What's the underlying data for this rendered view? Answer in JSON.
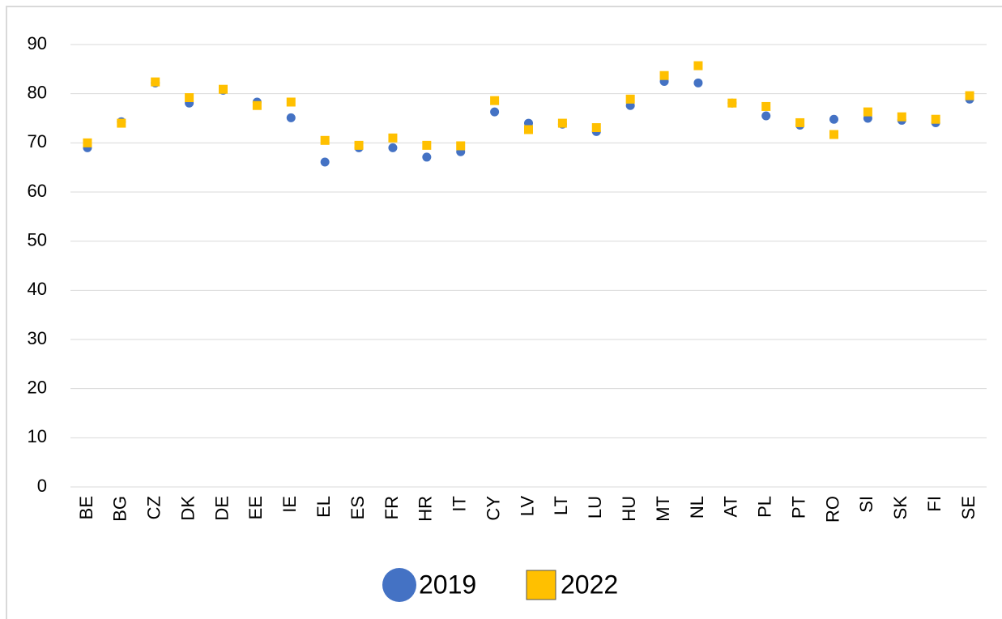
{
  "chart_data": {
    "type": "scatter",
    "categories": [
      "BE",
      "BG",
      "CZ",
      "DK",
      "DE",
      "EE",
      "IE",
      "EL",
      "ES",
      "FR",
      "HR",
      "IT",
      "CY",
      "LV",
      "LT",
      "LU",
      "HU",
      "MT",
      "NL",
      "AT",
      "PL",
      "PT",
      "RO",
      "SI",
      "SK",
      "FI",
      "SE"
    ],
    "series": [
      {
        "name": "2019",
        "color": "#4472c4",
        "marker": "circle",
        "values": [
          69.0,
          74.3,
          82.2,
          78.1,
          80.7,
          78.3,
          75.1,
          66.1,
          69.0,
          69.0,
          67.1,
          68.2,
          76.3,
          74.0,
          73.8,
          72.3,
          77.6,
          82.5,
          82.2,
          78.1,
          75.5,
          73.6,
          74.8,
          75.0,
          74.6,
          74.1,
          78.9
        ]
      },
      {
        "name": "2022",
        "color": "#ffc000",
        "marker": "square",
        "values": [
          70.0,
          74.0,
          82.4,
          79.2,
          80.9,
          77.6,
          78.3,
          70.5,
          69.5,
          71.0,
          69.5,
          69.4,
          78.6,
          72.7,
          74.0,
          73.1,
          78.9,
          83.7,
          85.7,
          78.1,
          77.4,
          74.1,
          71.7,
          76.3,
          75.3,
          74.8,
          79.6
        ]
      }
    ],
    "ylim": [
      0,
      90
    ],
    "yticks": [
      0,
      10,
      20,
      30,
      40,
      50,
      60,
      70,
      80,
      90
    ],
    "grid": true,
    "legend": "bottom"
  }
}
